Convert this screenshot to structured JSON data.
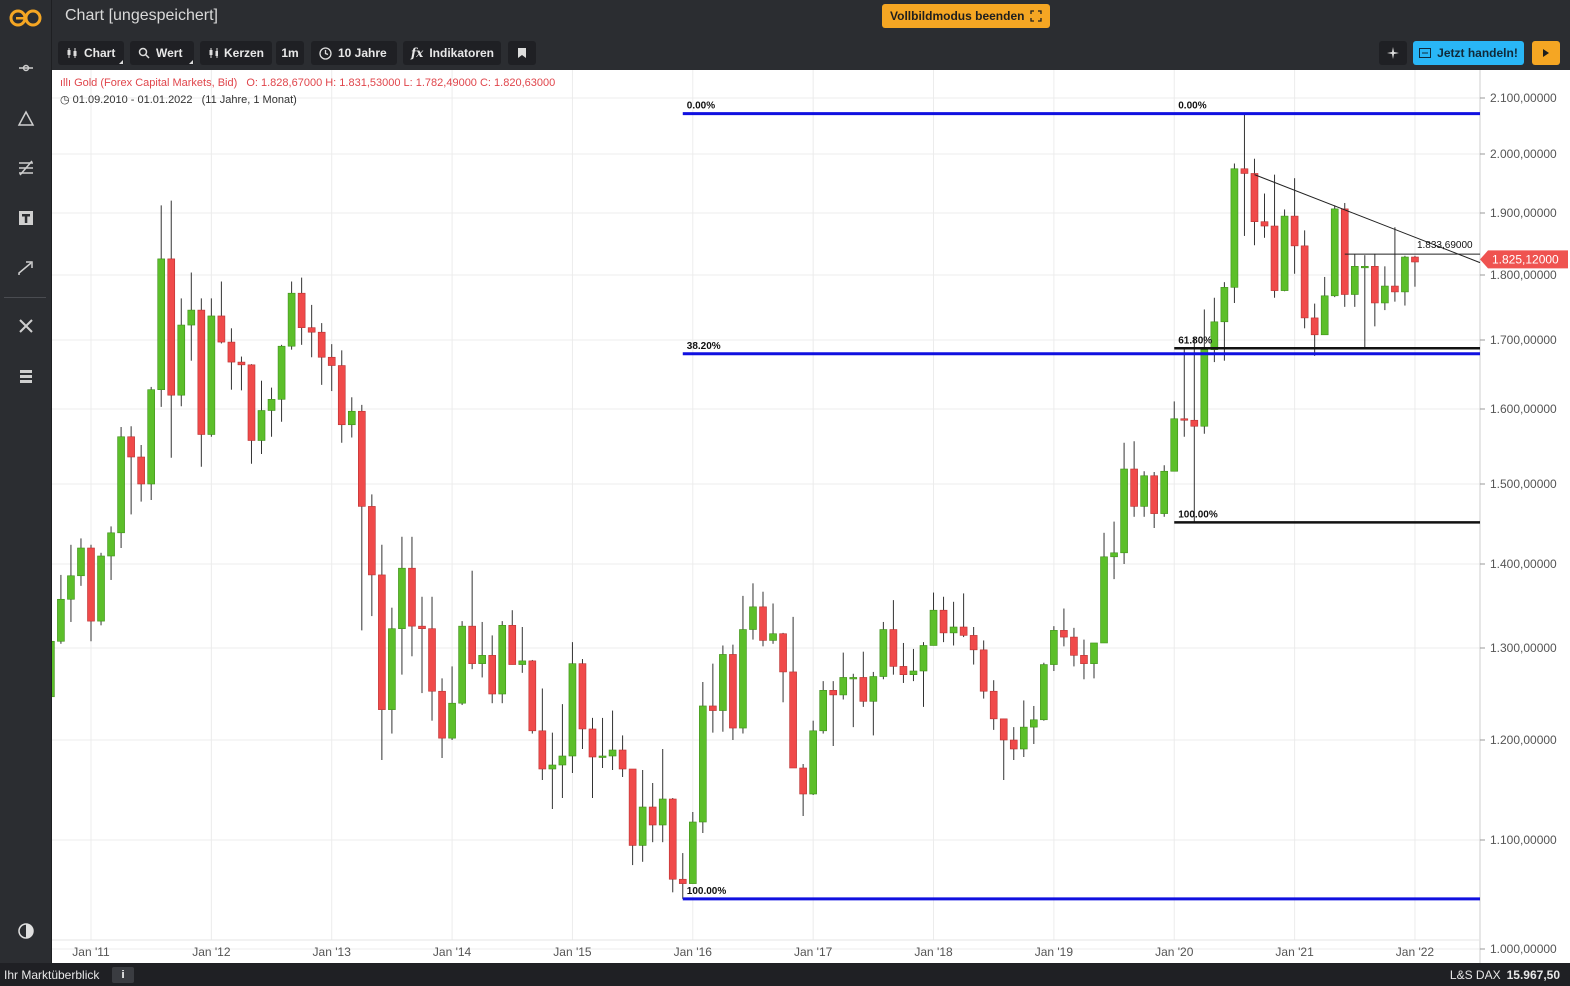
{
  "window": {
    "title": "Chart [ungespeichert]",
    "fullscreen_label": "Vollbildmodus beenden"
  },
  "toolbar": {
    "chart_label": "Chart",
    "value_label": "Wert",
    "candles_label": "Kerzen",
    "interval_label": "1m",
    "range_label": "10 Jahre",
    "indicators_label": "Indikatoren",
    "trade_label": "Jetzt handeln!"
  },
  "sidebar": {
    "icons": [
      "crosshair-icon",
      "triangle-icon",
      "drawing-tools-icon",
      "text-tool-icon",
      "trend-arrow-icon",
      "settings-tools-icon",
      "list-icon",
      "contrast-icon"
    ]
  },
  "info": {
    "instrument": "Gold (Forex Capital Markets, Bid)",
    "ohlc": "O: 1.828,67000   H: 1.831,53000   L: 1.782,49000   C: 1.820,63000",
    "period": "01.09.2010 - 01.01.2022",
    "duration": "(11 Jahre, 1 Monat)"
  },
  "status": {
    "market_label": "Ihr Marktüberblick",
    "info": "i",
    "index_name": "L&S DAX",
    "index_value": "15.967,50"
  },
  "colors": {
    "up": "#5cbf2a",
    "down": "#f04a4a",
    "fib_blue": "#1010e0",
    "price_tag": "#ef5350",
    "accent_orange": "#f5a623",
    "accent_cyan": "#29b6f6"
  },
  "chart_data": {
    "type": "candlestick",
    "ylim": [
      1000,
      2100
    ],
    "xlim": [
      "2010-08",
      "2022-06"
    ],
    "y_ticks": [
      {
        "value": 1000,
        "label": "1.000,00000"
      },
      {
        "value": 1100,
        "label": "1.100,00000"
      },
      {
        "value": 1200,
        "label": "1.200,00000"
      },
      {
        "value": 1300,
        "label": "1.300,00000"
      },
      {
        "value": 1400,
        "label": "1.400,00000"
      },
      {
        "value": 1500,
        "label": "1.500,00000"
      },
      {
        "value": 1600,
        "label": "1.600,00000"
      },
      {
        "value": 1700,
        "label": "1.700,00000"
      },
      {
        "value": 1800,
        "label": "1.800,00000"
      },
      {
        "value": 1900,
        "label": "1.900,00000"
      },
      {
        "value": 2000,
        "label": "2.000,00000"
      },
      {
        "value": 2100,
        "label": "2.100,00000"
      }
    ],
    "x_ticks": [
      "Jan '11",
      "Jan '12",
      "Jan '13",
      "Jan '14",
      "Jan '15",
      "Jan '16",
      "Jan '17",
      "Jan '18",
      "Jan '19",
      "Jan '20",
      "Jan '21",
      "Jan '22"
    ],
    "x_tick_dates": [
      "2011-01",
      "2012-01",
      "2013-01",
      "2014-01",
      "2015-01",
      "2016-01",
      "2017-01",
      "2018-01",
      "2019-01",
      "2020-01",
      "2021-01",
      "2022-01"
    ],
    "current_price": "1.825,12000",
    "current_price_value": 1825.12,
    "annotations": {
      "fib_blue": [
        {
          "label": "0.00%",
          "value": 2072,
          "from": "2015-12",
          "to": "2022-06"
        },
        {
          "label": "38.20%",
          "value": 1680,
          "from": "2015-12",
          "to": "2022-06"
        },
        {
          "label": "100.00%",
          "value": 1046,
          "from": "2015-12",
          "to": "2022-06"
        }
      ],
      "fib_black": [
        {
          "label": "0.00%",
          "value": 2072,
          "from": "2020-01",
          "to": "2022-06"
        },
        {
          "label": "61.80%",
          "value": 1688,
          "from": "2020-01",
          "to": "2022-06"
        },
        {
          "label": "100.00%",
          "value": 1452,
          "from": "2020-01",
          "to": "2022-06"
        }
      ],
      "trendline": {
        "from": {
          "date": "2020-09",
          "value": 1965
        },
        "to": {
          "date": "2022-06",
          "value": 1820
        }
      },
      "resistance": {
        "label": "1.833,69000",
        "value": 1833.69,
        "from": "2021-06",
        "to": "2022-06"
      }
    },
    "candles": [
      {
        "d": "2010-09",
        "o": 1247,
        "h": 1307,
        "l": 1243,
        "c": 1308
      },
      {
        "d": "2010-10",
        "o": 1308,
        "h": 1387,
        "l": 1305,
        "c": 1358
      },
      {
        "d": "2010-11",
        "o": 1358,
        "h": 1424,
        "l": 1331,
        "c": 1386
      },
      {
        "d": "2010-12",
        "o": 1386,
        "h": 1432,
        "l": 1374,
        "c": 1420
      },
      {
        "d": "2011-01",
        "o": 1420,
        "h": 1424,
        "l": 1308,
        "c": 1332
      },
      {
        "d": "2011-02",
        "o": 1332,
        "h": 1414,
        "l": 1327,
        "c": 1410
      },
      {
        "d": "2011-03",
        "o": 1410,
        "h": 1447,
        "l": 1381,
        "c": 1439
      },
      {
        "d": "2011-04",
        "o": 1439,
        "h": 1576,
        "l": 1420,
        "c": 1563
      },
      {
        "d": "2011-05",
        "o": 1563,
        "h": 1577,
        "l": 1462,
        "c": 1536
      },
      {
        "d": "2011-06",
        "o": 1536,
        "h": 1552,
        "l": 1478,
        "c": 1500
      },
      {
        "d": "2011-07",
        "o": 1500,
        "h": 1632,
        "l": 1480,
        "c": 1628
      },
      {
        "d": "2011-08",
        "o": 1628,
        "h": 1913,
        "l": 1603,
        "c": 1826
      },
      {
        "d": "2011-09",
        "o": 1826,
        "h": 1921,
        "l": 1535,
        "c": 1620
      },
      {
        "d": "2011-10",
        "o": 1620,
        "h": 1764,
        "l": 1604,
        "c": 1723
      },
      {
        "d": "2011-11",
        "o": 1723,
        "h": 1804,
        "l": 1670,
        "c": 1746
      },
      {
        "d": "2011-12",
        "o": 1746,
        "h": 1764,
        "l": 1523,
        "c": 1566
      },
      {
        "d": "2012-01",
        "o": 1566,
        "h": 1764,
        "l": 1563,
        "c": 1737
      },
      {
        "d": "2012-02",
        "o": 1737,
        "h": 1790,
        "l": 1695,
        "c": 1697
      },
      {
        "d": "2012-03",
        "o": 1697,
        "h": 1718,
        "l": 1628,
        "c": 1668
      },
      {
        "d": "2012-04",
        "o": 1668,
        "h": 1676,
        "l": 1627,
        "c": 1664
      },
      {
        "d": "2012-05",
        "o": 1664,
        "h": 1665,
        "l": 1527,
        "c": 1558
      },
      {
        "d": "2012-06",
        "o": 1558,
        "h": 1641,
        "l": 1540,
        "c": 1598
      },
      {
        "d": "2012-07",
        "o": 1598,
        "h": 1631,
        "l": 1563,
        "c": 1614
      },
      {
        "d": "2012-08",
        "o": 1614,
        "h": 1693,
        "l": 1583,
        "c": 1691
      },
      {
        "d": "2012-09",
        "o": 1691,
        "h": 1790,
        "l": 1686,
        "c": 1772
      },
      {
        "d": "2012-10",
        "o": 1772,
        "h": 1796,
        "l": 1693,
        "c": 1719
      },
      {
        "d": "2012-11",
        "o": 1719,
        "h": 1754,
        "l": 1675,
        "c": 1712
      },
      {
        "d": "2012-12",
        "o": 1712,
        "h": 1726,
        "l": 1635,
        "c": 1675
      },
      {
        "d": "2013-01",
        "o": 1675,
        "h": 1694,
        "l": 1626,
        "c": 1663
      },
      {
        "d": "2013-02",
        "o": 1663,
        "h": 1685,
        "l": 1555,
        "c": 1579
      },
      {
        "d": "2013-03",
        "o": 1579,
        "h": 1617,
        "l": 1562,
        "c": 1597
      },
      {
        "d": "2013-04",
        "o": 1597,
        "h": 1606,
        "l": 1321,
        "c": 1472
      },
      {
        "d": "2013-05",
        "o": 1472,
        "h": 1487,
        "l": 1338,
        "c": 1387
      },
      {
        "d": "2013-06",
        "o": 1387,
        "h": 1424,
        "l": 1180,
        "c": 1233
      },
      {
        "d": "2013-07",
        "o": 1233,
        "h": 1348,
        "l": 1207,
        "c": 1323
      },
      {
        "d": "2013-08",
        "o": 1323,
        "h": 1434,
        "l": 1271,
        "c": 1395
      },
      {
        "d": "2013-09",
        "o": 1395,
        "h": 1434,
        "l": 1291,
        "c": 1326
      },
      {
        "d": "2013-10",
        "o": 1326,
        "h": 1361,
        "l": 1251,
        "c": 1323
      },
      {
        "d": "2013-11",
        "o": 1323,
        "h": 1361,
        "l": 1221,
        "c": 1253
      },
      {
        "d": "2013-12",
        "o": 1253,
        "h": 1267,
        "l": 1182,
        "c": 1202
      },
      {
        "d": "2014-01",
        "o": 1202,
        "h": 1280,
        "l": 1200,
        "c": 1240
      },
      {
        "d": "2014-02",
        "o": 1240,
        "h": 1332,
        "l": 1238,
        "c": 1326
      },
      {
        "d": "2014-03",
        "o": 1326,
        "h": 1392,
        "l": 1277,
        "c": 1283
      },
      {
        "d": "2014-04",
        "o": 1283,
        "h": 1331,
        "l": 1268,
        "c": 1292
      },
      {
        "d": "2014-05",
        "o": 1292,
        "h": 1315,
        "l": 1240,
        "c": 1250
      },
      {
        "d": "2014-06",
        "o": 1250,
        "h": 1332,
        "l": 1240,
        "c": 1327
      },
      {
        "d": "2014-07",
        "o": 1327,
        "h": 1345,
        "l": 1282,
        "c": 1282
      },
      {
        "d": "2014-08",
        "o": 1282,
        "h": 1325,
        "l": 1273,
        "c": 1286
      },
      {
        "d": "2014-09",
        "o": 1286,
        "h": 1287,
        "l": 1207,
        "c": 1210
      },
      {
        "d": "2014-10",
        "o": 1210,
        "h": 1256,
        "l": 1160,
        "c": 1171
      },
      {
        "d": "2014-11",
        "o": 1171,
        "h": 1208,
        "l": 1131,
        "c": 1175
      },
      {
        "d": "2014-12",
        "o": 1175,
        "h": 1239,
        "l": 1142,
        "c": 1184
      },
      {
        "d": "2015-01",
        "o": 1184,
        "h": 1307,
        "l": 1167,
        "c": 1283
      },
      {
        "d": "2015-02",
        "o": 1283,
        "h": 1288,
        "l": 1191,
        "c": 1212
      },
      {
        "d": "2015-03",
        "o": 1212,
        "h": 1224,
        "l": 1142,
        "c": 1183
      },
      {
        "d": "2015-04",
        "o": 1183,
        "h": 1224,
        "l": 1172,
        "c": 1184
      },
      {
        "d": "2015-05",
        "o": 1184,
        "h": 1232,
        "l": 1170,
        "c": 1190
      },
      {
        "d": "2015-06",
        "o": 1190,
        "h": 1205,
        "l": 1163,
        "c": 1171
      },
      {
        "d": "2015-07",
        "o": 1171,
        "h": 1171,
        "l": 1077,
        "c": 1095
      },
      {
        "d": "2015-08",
        "o": 1095,
        "h": 1170,
        "l": 1080,
        "c": 1133
      },
      {
        "d": "2015-09",
        "o": 1133,
        "h": 1157,
        "l": 1098,
        "c": 1115
      },
      {
        "d": "2015-10",
        "o": 1115,
        "h": 1191,
        "l": 1098,
        "c": 1141
      },
      {
        "d": "2015-11",
        "o": 1141,
        "h": 1142,
        "l": 1052,
        "c": 1064
      },
      {
        "d": "2015-12",
        "o": 1064,
        "h": 1088,
        "l": 1046,
        "c": 1060
      },
      {
        "d": "2016-01",
        "o": 1060,
        "h": 1128,
        "l": 1061,
        "c": 1118
      },
      {
        "d": "2016-02",
        "o": 1118,
        "h": 1263,
        "l": 1107,
        "c": 1237
      },
      {
        "d": "2016-03",
        "o": 1237,
        "h": 1283,
        "l": 1208,
        "c": 1232
      },
      {
        "d": "2016-04",
        "o": 1232,
        "h": 1303,
        "l": 1209,
        "c": 1293
      },
      {
        "d": "2016-05",
        "o": 1293,
        "h": 1304,
        "l": 1200,
        "c": 1213
      },
      {
        "d": "2016-06",
        "o": 1213,
        "h": 1362,
        "l": 1207,
        "c": 1322
      },
      {
        "d": "2016-07",
        "o": 1322,
        "h": 1377,
        "l": 1310,
        "c": 1349
      },
      {
        "d": "2016-08",
        "o": 1349,
        "h": 1367,
        "l": 1302,
        "c": 1309
      },
      {
        "d": "2016-09",
        "o": 1309,
        "h": 1353,
        "l": 1305,
        "c": 1317
      },
      {
        "d": "2016-10",
        "o": 1317,
        "h": 1318,
        "l": 1241,
        "c": 1274
      },
      {
        "d": "2016-11",
        "o": 1274,
        "h": 1337,
        "l": 1172,
        "c": 1172
      },
      {
        "d": "2016-12",
        "o": 1172,
        "h": 1176,
        "l": 1124,
        "c": 1146
      },
      {
        "d": "2017-01",
        "o": 1146,
        "h": 1221,
        "l": 1145,
        "c": 1210
      },
      {
        "d": "2017-02",
        "o": 1210,
        "h": 1264,
        "l": 1207,
        "c": 1254
      },
      {
        "d": "2017-03",
        "o": 1254,
        "h": 1264,
        "l": 1194,
        "c": 1249
      },
      {
        "d": "2017-04",
        "o": 1249,
        "h": 1295,
        "l": 1244,
        "c": 1268
      },
      {
        "d": "2017-05",
        "o": 1268,
        "h": 1272,
        "l": 1214,
        "c": 1268
      },
      {
        "d": "2017-06",
        "o": 1268,
        "h": 1296,
        "l": 1236,
        "c": 1242
      },
      {
        "d": "2017-07",
        "o": 1242,
        "h": 1274,
        "l": 1205,
        "c": 1269
      },
      {
        "d": "2017-08",
        "o": 1269,
        "h": 1331,
        "l": 1266,
        "c": 1322
      },
      {
        "d": "2017-09",
        "o": 1322,
        "h": 1357,
        "l": 1271,
        "c": 1280
      },
      {
        "d": "2017-10",
        "o": 1280,
        "h": 1306,
        "l": 1262,
        "c": 1271
      },
      {
        "d": "2017-11",
        "o": 1271,
        "h": 1299,
        "l": 1264,
        "c": 1275
      },
      {
        "d": "2017-12",
        "o": 1275,
        "h": 1307,
        "l": 1236,
        "c": 1303
      },
      {
        "d": "2018-01",
        "o": 1303,
        "h": 1366,
        "l": 1303,
        "c": 1345
      },
      {
        "d": "2018-02",
        "o": 1345,
        "h": 1361,
        "l": 1307,
        "c": 1318
      },
      {
        "d": "2018-03",
        "o": 1318,
        "h": 1355,
        "l": 1303,
        "c": 1325
      },
      {
        "d": "2018-04",
        "o": 1325,
        "h": 1365,
        "l": 1313,
        "c": 1315
      },
      {
        "d": "2018-05",
        "o": 1315,
        "h": 1325,
        "l": 1282,
        "c": 1298
      },
      {
        "d": "2018-06",
        "o": 1298,
        "h": 1309,
        "l": 1245,
        "c": 1253
      },
      {
        "d": "2018-07",
        "o": 1253,
        "h": 1265,
        "l": 1211,
        "c": 1223
      },
      {
        "d": "2018-08",
        "o": 1223,
        "h": 1223,
        "l": 1160,
        "c": 1200
      },
      {
        "d": "2018-09",
        "o": 1200,
        "h": 1214,
        "l": 1180,
        "c": 1191
      },
      {
        "d": "2018-10",
        "o": 1191,
        "h": 1243,
        "l": 1183,
        "c": 1214
      },
      {
        "d": "2018-11",
        "o": 1214,
        "h": 1237,
        "l": 1196,
        "c": 1222
      },
      {
        "d": "2018-12",
        "o": 1222,
        "h": 1284,
        "l": 1221,
        "c": 1282
      },
      {
        "d": "2019-01",
        "o": 1282,
        "h": 1326,
        "l": 1275,
        "c": 1321
      },
      {
        "d": "2019-02",
        "o": 1321,
        "h": 1347,
        "l": 1302,
        "c": 1313
      },
      {
        "d": "2019-03",
        "o": 1313,
        "h": 1324,
        "l": 1280,
        "c": 1292
      },
      {
        "d": "2019-04",
        "o": 1292,
        "h": 1310,
        "l": 1266,
        "c": 1283
      },
      {
        "d": "2019-05",
        "o": 1283,
        "h": 1306,
        "l": 1267,
        "c": 1306
      },
      {
        "d": "2019-06",
        "o": 1306,
        "h": 1439,
        "l": 1306,
        "c": 1409
      },
      {
        "d": "2019-07",
        "o": 1409,
        "h": 1453,
        "l": 1382,
        "c": 1414
      },
      {
        "d": "2019-08",
        "o": 1414,
        "h": 1555,
        "l": 1400,
        "c": 1520
      },
      {
        "d": "2019-09",
        "o": 1520,
        "h": 1557,
        "l": 1459,
        "c": 1472
      },
      {
        "d": "2019-10",
        "o": 1472,
        "h": 1517,
        "l": 1459,
        "c": 1511
      },
      {
        "d": "2019-11",
        "o": 1511,
        "h": 1516,
        "l": 1445,
        "c": 1463
      },
      {
        "d": "2019-12",
        "o": 1463,
        "h": 1525,
        "l": 1459,
        "c": 1517
      },
      {
        "d": "2020-01",
        "o": 1517,
        "h": 1611,
        "l": 1517,
        "c": 1587
      },
      {
        "d": "2020-02",
        "o": 1587,
        "h": 1689,
        "l": 1563,
        "c": 1585
      },
      {
        "d": "2020-03",
        "o": 1585,
        "h": 1703,
        "l": 1451,
        "c": 1577
      },
      {
        "d": "2020-04",
        "o": 1577,
        "h": 1747,
        "l": 1567,
        "c": 1686
      },
      {
        "d": "2020-05",
        "o": 1686,
        "h": 1765,
        "l": 1668,
        "c": 1728
      },
      {
        "d": "2020-06",
        "o": 1728,
        "h": 1789,
        "l": 1670,
        "c": 1781
      },
      {
        "d": "2020-07",
        "o": 1781,
        "h": 1984,
        "l": 1757,
        "c": 1975
      },
      {
        "d": "2020-08",
        "o": 1975,
        "h": 2072,
        "l": 1863,
        "c": 1967
      },
      {
        "d": "2020-09",
        "o": 1967,
        "h": 1992,
        "l": 1848,
        "c": 1886
      },
      {
        "d": "2020-10",
        "o": 1886,
        "h": 1933,
        "l": 1860,
        "c": 1879
      },
      {
        "d": "2020-11",
        "o": 1879,
        "h": 1965,
        "l": 1765,
        "c": 1776
      },
      {
        "d": "2020-12",
        "o": 1776,
        "h": 1906,
        "l": 1775,
        "c": 1895
      },
      {
        "d": "2021-01",
        "o": 1895,
        "h": 1959,
        "l": 1802,
        "c": 1847
      },
      {
        "d": "2021-02",
        "o": 1847,
        "h": 1872,
        "l": 1718,
        "c": 1734
      },
      {
        "d": "2021-03",
        "o": 1734,
        "h": 1756,
        "l": 1677,
        "c": 1708
      },
      {
        "d": "2021-04",
        "o": 1708,
        "h": 1797,
        "l": 1708,
        "c": 1768
      },
      {
        "d": "2021-05",
        "o": 1768,
        "h": 1913,
        "l": 1766,
        "c": 1907
      },
      {
        "d": "2021-06",
        "o": 1907,
        "h": 1917,
        "l": 1751,
        "c": 1770
      },
      {
        "d": "2021-07",
        "o": 1770,
        "h": 1833,
        "l": 1751,
        "c": 1814
      },
      {
        "d": "2021-08",
        "o": 1814,
        "h": 1832,
        "l": 1688,
        "c": 1814
      },
      {
        "d": "2021-09",
        "o": 1814,
        "h": 1834,
        "l": 1721,
        "c": 1757
      },
      {
        "d": "2021-10",
        "o": 1757,
        "h": 1814,
        "l": 1746,
        "c": 1783
      },
      {
        "d": "2021-11",
        "o": 1783,
        "h": 1877,
        "l": 1759,
        "c": 1774
      },
      {
        "d": "2021-12",
        "o": 1774,
        "h": 1831,
        "l": 1753,
        "c": 1829
      },
      {
        "d": "2022-01",
        "o": 1829,
        "h": 1831,
        "l": 1782,
        "c": 1821
      }
    ]
  }
}
